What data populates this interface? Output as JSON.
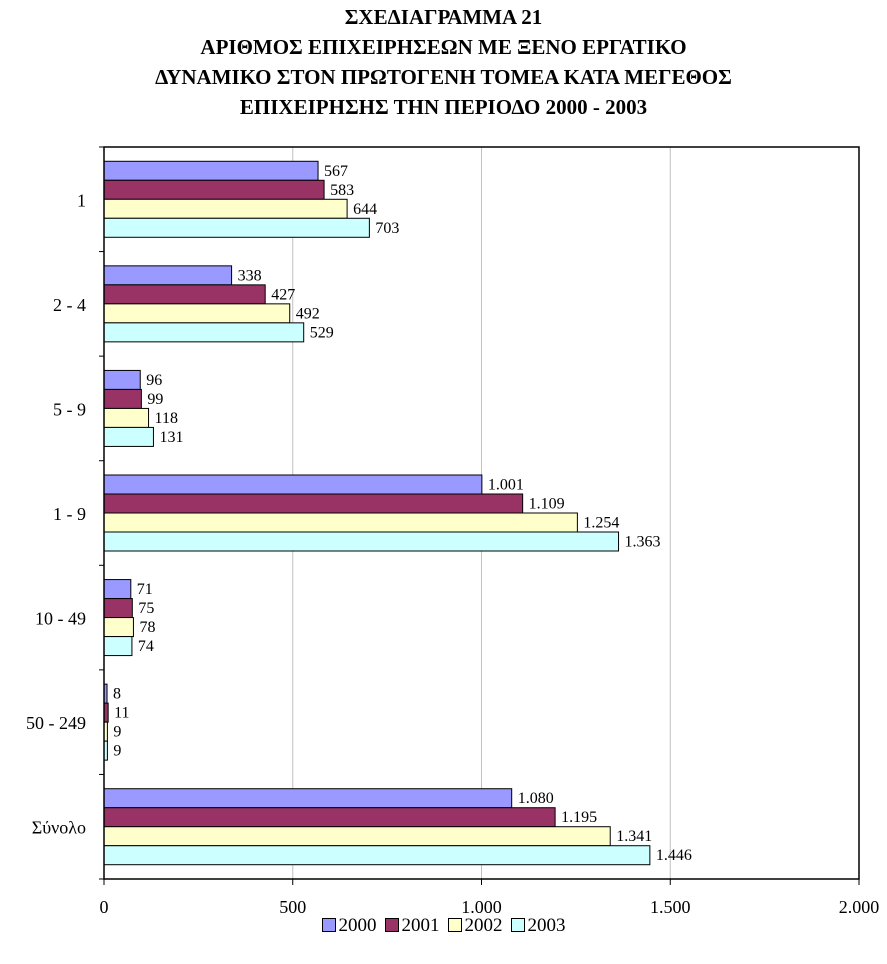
{
  "chart_data": {
    "type": "bar",
    "orientation": "horizontal",
    "title_lines": [
      "ΣΧΕΔΙΑΓΡΑΜΜΑ 21",
      "ΑΡΙΘΜΟΣ ΕΠΙΧΕΙΡΗΣΕΩΝ ΜΕ ΞΕΝΟ ΕΡΓΑΤΙΚΟ",
      "ΔΥΝΑΜΙΚΟ ΣΤΟΝ ΠΡΩΤΟΓΕΝΗ ΤΟΜΕΑ ΚΑΤΑ ΜΕΓΕΘΟΣ",
      "ΕΠΙΧΕΙΡΗΣΗΣ ΤΗΝ ΠΕΡΙΟΔΟ 2000 - 2003"
    ],
    "categories": [
      "1",
      "2 - 4",
      "5 - 9",
      "1 - 9",
      "10 - 49",
      "50 - 249",
      "Σύνολο"
    ],
    "series": [
      {
        "name": "2000",
        "color": "#9999ff",
        "values": [
          567,
          338,
          96,
          1001,
          71,
          8,
          1080
        ],
        "labels": [
          "567",
          "338",
          "96",
          "1.001",
          "71",
          "8",
          "1.080"
        ]
      },
      {
        "name": "2001",
        "color": "#993366",
        "values": [
          583,
          427,
          99,
          1109,
          75,
          11,
          1195
        ],
        "labels": [
          "583",
          "427",
          "99",
          "1.109",
          "75",
          "11",
          "1.195"
        ]
      },
      {
        "name": "2002",
        "color": "#ffffcc",
        "values": [
          644,
          492,
          118,
          1254,
          78,
          9,
          1341
        ],
        "labels": [
          "644",
          "492",
          "118",
          "1.254",
          "78",
          "9",
          "1.341"
        ]
      },
      {
        "name": "2003",
        "color": "#ccffff",
        "values": [
          703,
          529,
          131,
          1363,
          74,
          9,
          1446
        ],
        "labels": [
          "703",
          "529",
          "131",
          "1.363",
          "74",
          "9",
          "1.446"
        ]
      }
    ],
    "xlim": [
      0,
      2000
    ],
    "x_ticks": [
      0,
      500,
      1000,
      1500,
      2000
    ],
    "x_tick_labels": [
      "0",
      "500",
      "1.000",
      "1.500",
      "2.000"
    ],
    "grid": "vertical",
    "grid_color": "#c0c0c0",
    "legend_placement": "bottom"
  }
}
